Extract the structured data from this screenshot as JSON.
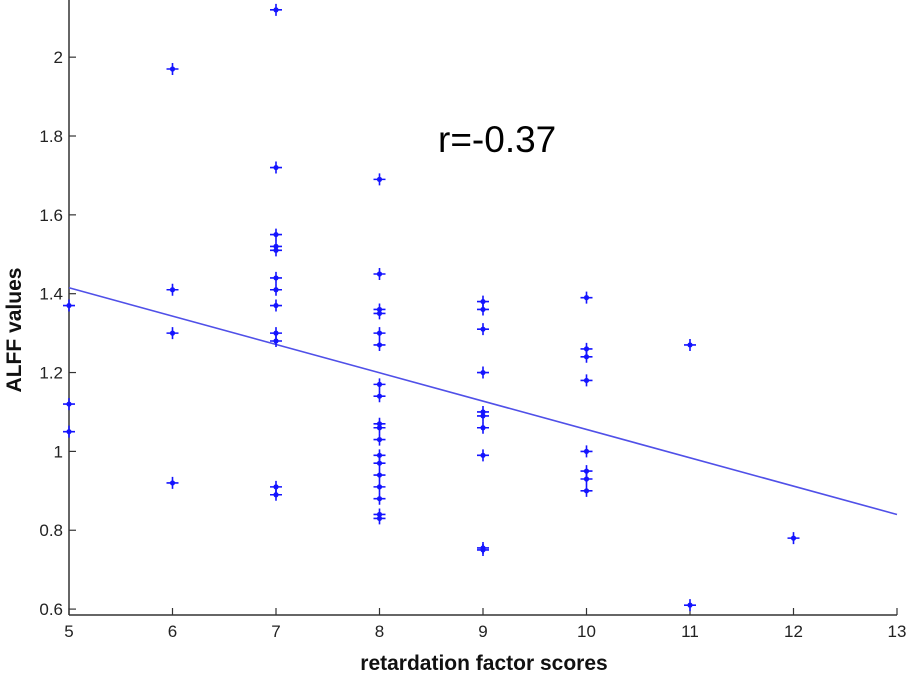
{
  "chart_data": {
    "type": "scatter",
    "xlabel": "retardation factor scores",
    "ylabel": "ALFF values",
    "annotation": "r=-0.37",
    "xlim": [
      5,
      13
    ],
    "ylim": [
      0.585,
      2.145
    ],
    "x_ticks": [
      5,
      6,
      7,
      8,
      9,
      10,
      11,
      12,
      13
    ],
    "y_ticks": [
      0.6,
      0.8,
      1,
      1.2,
      1.4,
      1.6,
      1.8,
      2
    ],
    "y_tick_labels": [
      "0.6",
      "0.8",
      "1",
      "1.2",
      "1.4",
      "1.6",
      "1.8",
      "2"
    ],
    "marker_color": "#1414ff",
    "line_color": "#5050e8",
    "fit_line": {
      "x": [
        5,
        13
      ],
      "y": [
        1.415,
        0.84
      ]
    },
    "points": [
      {
        "x": 5,
        "y": 1.37
      },
      {
        "x": 5,
        "y": 1.12
      },
      {
        "x": 5,
        "y": 1.05
      },
      {
        "x": 6,
        "y": 1.97
      },
      {
        "x": 6,
        "y": 1.41
      },
      {
        "x": 6,
        "y": 1.3
      },
      {
        "x": 6,
        "y": 0.92
      },
      {
        "x": 7,
        "y": 2.12
      },
      {
        "x": 7,
        "y": 1.72
      },
      {
        "x": 7,
        "y": 1.55
      },
      {
        "x": 7,
        "y": 1.52
      },
      {
        "x": 7,
        "y": 1.51
      },
      {
        "x": 7,
        "y": 1.44
      },
      {
        "x": 7,
        "y": 1.41
      },
      {
        "x": 7,
        "y": 1.37
      },
      {
        "x": 7,
        "y": 1.3
      },
      {
        "x": 7,
        "y": 1.28
      },
      {
        "x": 7,
        "y": 0.91
      },
      {
        "x": 7,
        "y": 0.89
      },
      {
        "x": 8,
        "y": 1.69
      },
      {
        "x": 8,
        "y": 1.45
      },
      {
        "x": 8,
        "y": 1.36
      },
      {
        "x": 8,
        "y": 1.35
      },
      {
        "x": 8,
        "y": 1.3
      },
      {
        "x": 8,
        "y": 1.27
      },
      {
        "x": 8,
        "y": 1.17
      },
      {
        "x": 8,
        "y": 1.14
      },
      {
        "x": 8,
        "y": 1.07
      },
      {
        "x": 8,
        "y": 1.06
      },
      {
        "x": 8,
        "y": 1.03
      },
      {
        "x": 8,
        "y": 0.99
      },
      {
        "x": 8,
        "y": 0.97
      },
      {
        "x": 8,
        "y": 0.94
      },
      {
        "x": 8,
        "y": 0.91
      },
      {
        "x": 8,
        "y": 0.88
      },
      {
        "x": 8,
        "y": 0.84
      },
      {
        "x": 8,
        "y": 0.83
      },
      {
        "x": 9,
        "y": 1.38
      },
      {
        "x": 9,
        "y": 1.36
      },
      {
        "x": 9,
        "y": 1.31
      },
      {
        "x": 9,
        "y": 1.2
      },
      {
        "x": 9,
        "y": 1.1
      },
      {
        "x": 9,
        "y": 1.09
      },
      {
        "x": 9,
        "y": 1.06
      },
      {
        "x": 9,
        "y": 0.99
      },
      {
        "x": 9,
        "y": 0.755
      },
      {
        "x": 9,
        "y": 0.75
      },
      {
        "x": 10,
        "y": 1.39
      },
      {
        "x": 10,
        "y": 1.26
      },
      {
        "x": 10,
        "y": 1.24
      },
      {
        "x": 10,
        "y": 1.18
      },
      {
        "x": 10,
        "y": 1.0
      },
      {
        "x": 10,
        "y": 0.95
      },
      {
        "x": 10,
        "y": 0.93
      },
      {
        "x": 10,
        "y": 0.9
      },
      {
        "x": 11,
        "y": 1.27
      },
      {
        "x": 11,
        "y": 0.61
      },
      {
        "x": 12,
        "y": 0.78
      }
    ]
  }
}
